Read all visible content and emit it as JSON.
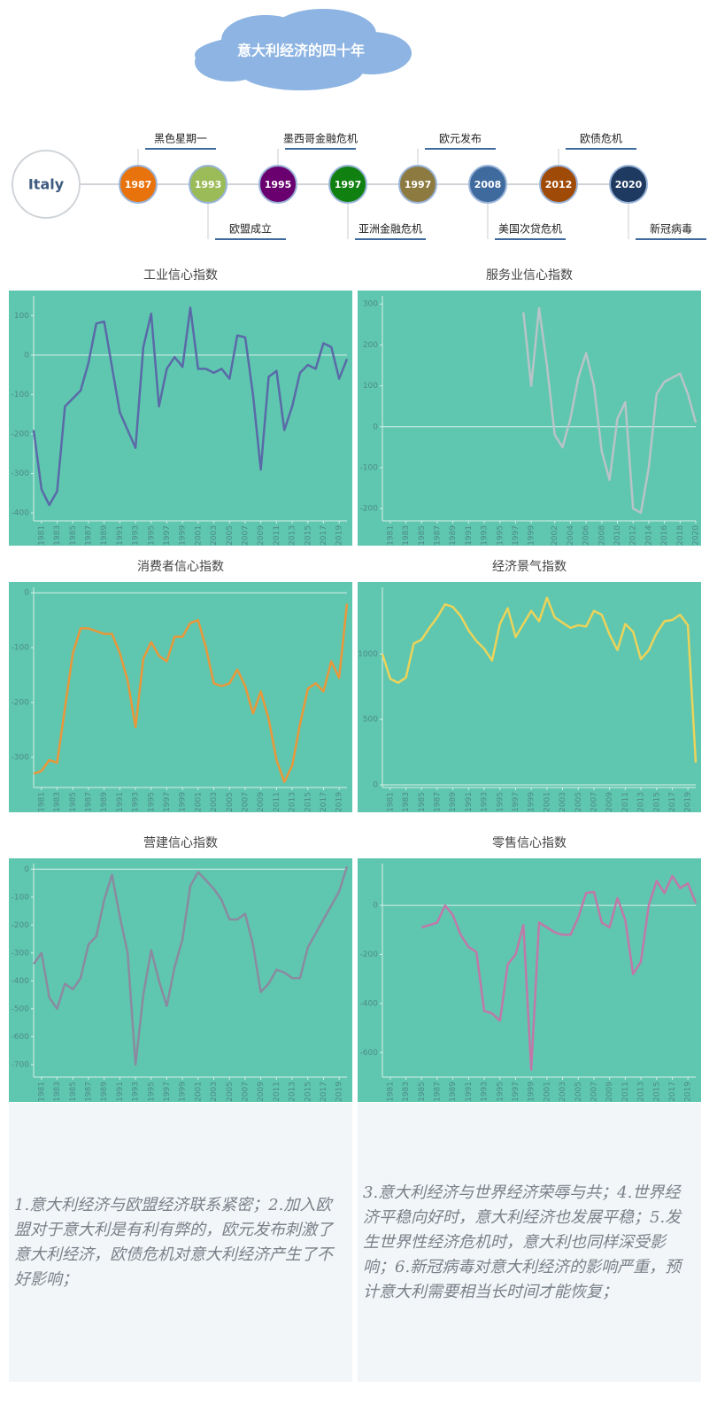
{
  "timeline": {
    "title": "意大利经济的四十年",
    "country": "Italy",
    "events": [
      {
        "year": "1987",
        "label": "黑色星期一",
        "color": "#e8720c"
      },
      {
        "year": "1993",
        "label": "欧盟成立",
        "color": "#9bbb59"
      },
      {
        "year": "1995",
        "label": "墨西哥金融危机",
        "color": "#6a0070"
      },
      {
        "year": "1997",
        "label": "亚洲金融危机",
        "color": "#108010"
      },
      {
        "year": "1997",
        "label": "欧元发布",
        "color": "#8c7a40"
      },
      {
        "year": "2008",
        "label": "美国次贷危机",
        "color": "#3e6a9e"
      },
      {
        "year": "2012",
        "label": "欧债危机",
        "color": "#a04a08"
      },
      {
        "year": "2020",
        "label": "新冠病毒",
        "color": "#1f3a60"
      }
    ]
  },
  "chart_data": [
    {
      "type": "line",
      "title": "工业信心指数",
      "color": "#5a6aa8",
      "x": [
        1980,
        1981,
        1982,
        1983,
        1984,
        1985,
        1986,
        1987,
        1988,
        1989,
        1990,
        1991,
        1992,
        1993,
        1994,
        1995,
        1996,
        1997,
        1998,
        1999,
        2000,
        2001,
        2002,
        2003,
        2004,
        2005,
        2006,
        2007,
        2008,
        2009,
        2010,
        2011,
        2012,
        2013,
        2014,
        2015,
        2016,
        2017,
        2018,
        2019,
        2020
      ],
      "values": [
        -190,
        -340,
        -380,
        -345,
        -130,
        -110,
        -90,
        -20,
        80,
        85,
        -30,
        -145,
        -190,
        -235,
        20,
        105,
        -130,
        -35,
        -5,
        -30,
        120,
        -35,
        -35,
        -45,
        -35,
        -60,
        50,
        45,
        -100,
        -290,
        -55,
        -40,
        -190,
        -130,
        -45,
        -25,
        -35,
        30,
        20,
        -60,
        -10
      ],
      "xlim": [
        1980,
        2020
      ],
      "xticks": [
        1981,
        1983,
        1985,
        1987,
        1989,
        1991,
        1993,
        1995,
        1997,
        1999,
        2001,
        2003,
        2005,
        2007,
        2009,
        2011,
        2013,
        2015,
        2017,
        2019
      ],
      "ylim": [
        -420,
        150
      ],
      "yticks": [
        -400,
        -300,
        -200,
        -100,
        0,
        100
      ]
    },
    {
      "type": "line",
      "title": "服务业信心指数",
      "color": "#b8c4c8",
      "x": [
        1980,
        1981,
        1982,
        1983,
        1984,
        1985,
        1986,
        1987,
        1988,
        1989,
        1990,
        1991,
        1992,
        1993,
        1994,
        1995,
        1996,
        1997,
        1998,
        1999,
        2000,
        2001,
        2002,
        2003,
        2004,
        2005,
        2006,
        2007,
        2008,
        2009,
        2010,
        2011,
        2012,
        2013,
        2014,
        2015,
        2016,
        2017,
        2018,
        2019,
        2020
      ],
      "values": [
        null,
        null,
        null,
        null,
        null,
        null,
        null,
        null,
        null,
        null,
        null,
        null,
        null,
        null,
        null,
        null,
        null,
        null,
        280,
        100,
        290,
        150,
        -20,
        -50,
        20,
        120,
        180,
        100,
        -60,
        -130,
        20,
        60,
        -200,
        -210,
        -100,
        80,
        110,
        120,
        130,
        80,
        10
      ],
      "xlim": [
        1980,
        2020
      ],
      "xticks": [
        1981,
        1983,
        1985,
        1987,
        1989,
        1991,
        1993,
        1995,
        1997,
        1999,
        2002,
        2004,
        2006,
        2008,
        2010,
        2012,
        2014,
        2016,
        2018,
        2020
      ],
      "ylim": [
        -230,
        320
      ],
      "yticks": [
        -200,
        -100,
        0,
        100,
        200,
        300
      ]
    },
    {
      "type": "line",
      "title": "消费者信心指数",
      "color": "#e8963a",
      "x": [
        1980,
        1981,
        1982,
        1983,
        1984,
        1985,
        1986,
        1987,
        1988,
        1989,
        1990,
        1991,
        1992,
        1993,
        1994,
        1995,
        1996,
        1997,
        1998,
        1999,
        2000,
        2001,
        2002,
        2003,
        2004,
        2005,
        2006,
        2007,
        2008,
        2009,
        2010,
        2011,
        2012,
        2013,
        2014,
        2015,
        2016,
        2017,
        2018,
        2019,
        2020
      ],
      "values": [
        -330,
        -325,
        -305,
        -310,
        -210,
        -110,
        -65,
        -65,
        -70,
        -75,
        -75,
        -110,
        -160,
        -245,
        -120,
        -90,
        -115,
        -125,
        -80,
        -80,
        -55,
        -50,
        -100,
        -165,
        -170,
        -165,
        -140,
        -170,
        -220,
        -180,
        -230,
        -305,
        -345,
        -315,
        -240,
        -175,
        -165,
        -180,
        -125,
        -155,
        -20
      ],
      "xlim": [
        1980,
        2020
      ],
      "xticks": [
        1981,
        1983,
        1985,
        1987,
        1989,
        1991,
        1993,
        1995,
        1997,
        1999,
        2001,
        2003,
        2005,
        2007,
        2009,
        2011,
        2013,
        2015,
        2017,
        2019
      ],
      "ylim": [
        -355,
        10
      ],
      "yticks": [
        -300,
        -200,
        -100,
        0
      ]
    },
    {
      "type": "line",
      "title": "经济景气指数",
      "color": "#ecd35a",
      "x": [
        1980,
        1981,
        1982,
        1983,
        1984,
        1985,
        1986,
        1987,
        1988,
        1989,
        1990,
        1991,
        1992,
        1993,
        1994,
        1995,
        1996,
        1997,
        1998,
        1999,
        2000,
        2001,
        2002,
        2003,
        2004,
        2005,
        2006,
        2007,
        2008,
        2009,
        2010,
        2011,
        2012,
        2013,
        2014,
        2015,
        2016,
        2017,
        2018,
        2019,
        2020
      ],
      "values": [
        1000,
        810,
        780,
        820,
        1080,
        1110,
        1200,
        1280,
        1380,
        1360,
        1290,
        1180,
        1100,
        1040,
        950,
        1230,
        1350,
        1130,
        1230,
        1330,
        1250,
        1430,
        1280,
        1240,
        1200,
        1220,
        1210,
        1330,
        1300,
        1150,
        1030,
        1230,
        1170,
        960,
        1030,
        1160,
        1250,
        1260,
        1300,
        1220,
        170
      ],
      "xlim": [
        1980,
        2020
      ],
      "xticks": [
        1981,
        1983,
        1985,
        1987,
        1989,
        1991,
        1993,
        1995,
        1997,
        1999,
        2001,
        2003,
        2005,
        2007,
        2009,
        2011,
        2013,
        2015,
        2017,
        2019
      ],
      "ylim": [
        -20,
        1510
      ],
      "yticks": [
        0,
        500,
        1000
      ]
    },
    {
      "type": "line",
      "title": "营建信心指数",
      "color": "#8a8aa0",
      "x": [
        1980,
        1981,
        1982,
        1983,
        1984,
        1985,
        1986,
        1987,
        1988,
        1989,
        1990,
        1991,
        1992,
        1993,
        1994,
        1995,
        1996,
        1997,
        1998,
        1999,
        2000,
        2001,
        2002,
        2003,
        2004,
        2005,
        2006,
        2007,
        2008,
        2009,
        2010,
        2011,
        2012,
        2013,
        2014,
        2015,
        2016,
        2017,
        2018,
        2019,
        2020
      ],
      "values": [
        -340,
        -300,
        -460,
        -500,
        -410,
        -430,
        -390,
        -270,
        -240,
        -110,
        -20,
        -170,
        -300,
        -700,
        -450,
        -290,
        -400,
        -490,
        -350,
        -250,
        -60,
        -10,
        -40,
        -70,
        -110,
        -180,
        -180,
        -160,
        -270,
        -440,
        -410,
        -360,
        -370,
        -390,
        -390,
        -280,
        -230,
        -180,
        -130,
        -80,
        10
      ],
      "xlim": [
        1980,
        2020
      ],
      "xticks": [
        1981,
        1983,
        1985,
        1987,
        1989,
        1991,
        1993,
        1995,
        1997,
        1999,
        2001,
        2003,
        2005,
        2007,
        2009,
        2011,
        2013,
        2015,
        2017,
        2019
      ],
      "ylim": [
        -745,
        20
      ],
      "yticks": [
        -700,
        -600,
        -500,
        -400,
        -300,
        -200,
        -100,
        0
      ]
    },
    {
      "type": "line",
      "title": "零售信心指数",
      "color": "#c078a8",
      "x": [
        1980,
        1981,
        1982,
        1983,
        1984,
        1985,
        1986,
        1987,
        1988,
        1989,
        1990,
        1991,
        1992,
        1993,
        1994,
        1995,
        1996,
        1997,
        1998,
        1999,
        2000,
        2001,
        2002,
        2003,
        2004,
        2005,
        2006,
        2007,
        2008,
        2009,
        2010,
        2011,
        2012,
        2013,
        2014,
        2015,
        2016,
        2017,
        2018,
        2019,
        2020
      ],
      "values": [
        null,
        null,
        null,
        null,
        null,
        -90,
        -80,
        -70,
        0,
        -40,
        -120,
        -170,
        -190,
        -430,
        -440,
        -470,
        -240,
        -200,
        -80,
        -670,
        -70,
        -90,
        -110,
        -120,
        -120,
        -50,
        50,
        55,
        -70,
        -90,
        30,
        -60,
        -280,
        -230,
        0,
        100,
        50,
        120,
        70,
        90,
        10
      ],
      "xlim": [
        1980,
        2020
      ],
      "xticks": [
        1981,
        1983,
        1985,
        1987,
        1989,
        1991,
        1993,
        1995,
        1997,
        1999,
        2001,
        2003,
        2005,
        2007,
        2009,
        2011,
        2013,
        2015,
        2017,
        2019
      ],
      "ylim": [
        -700,
        170
      ],
      "yticks": [
        -600,
        -400,
        -200,
        0
      ]
    }
  ],
  "notes": {
    "left": "1.意大利经济与欧盟经济联系紧密；2.加入欧盟对于意大利是有利有弊的，欧元发布刺激了意大利经济，欧债危机对意大利经济产生了不好影响；",
    "right": "3.意大利经济与世界经济荣辱与共；4.世界经济平稳向好时，意大利经济也发展平稳；5.发生世界性经济危机时，意大利也同样深受影响；6.新冠病毒对意大利经济的影响严重，预计意大利需要相当长时间才能恢复；"
  }
}
